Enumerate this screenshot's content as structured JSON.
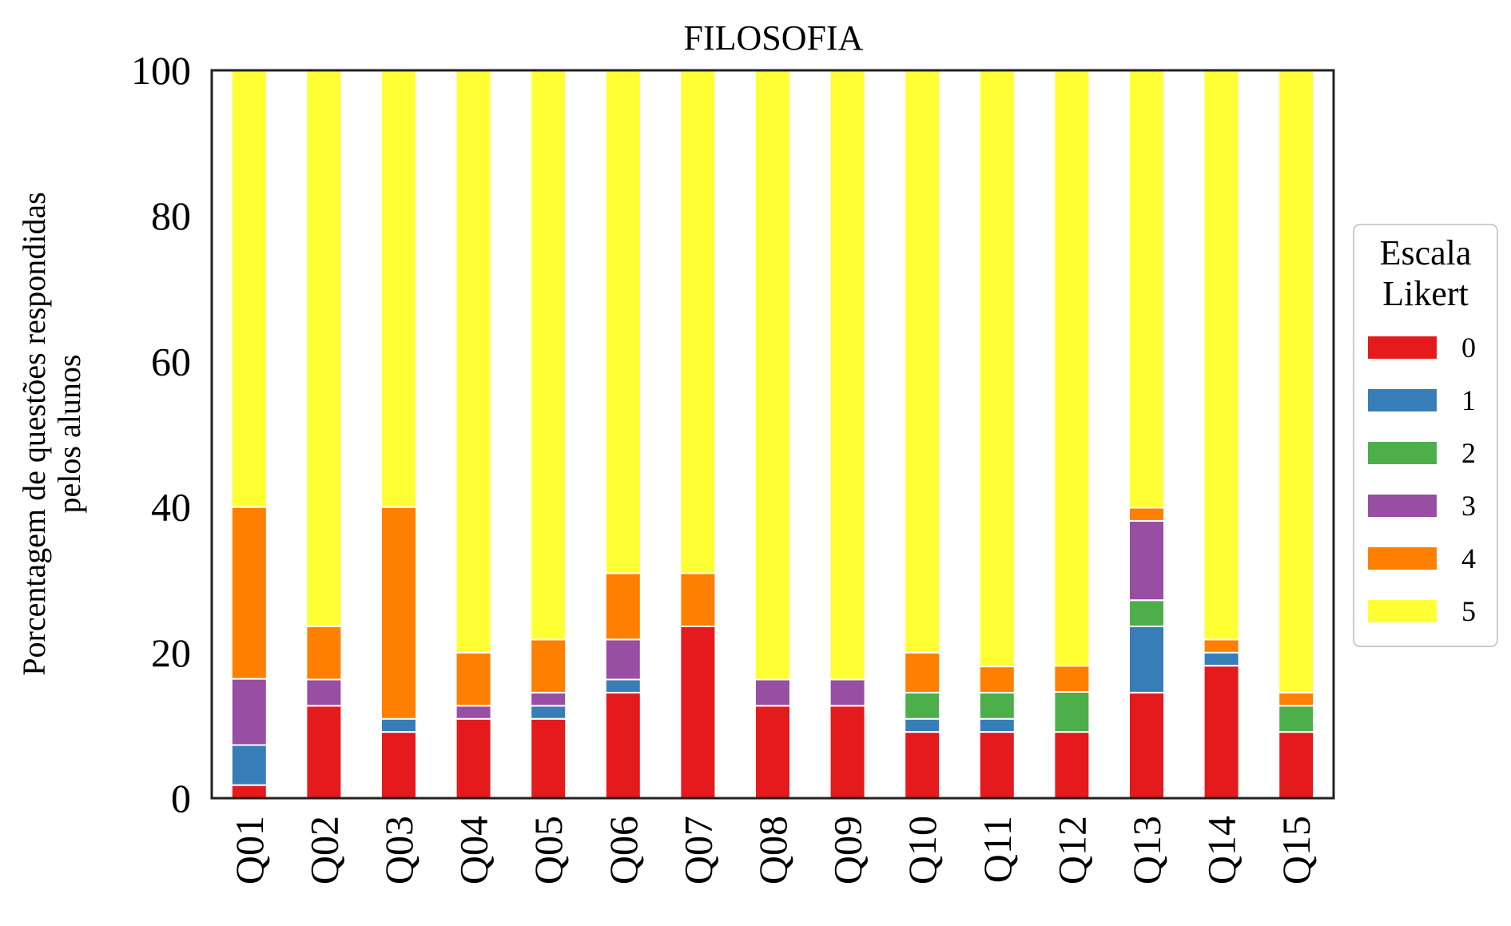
{
  "chart_data": {
    "type": "bar",
    "stacked": true,
    "title": "FILOSOFIA",
    "xlabel": "",
    "ylabel_lines": [
      "Porcentagem de questões respondidas",
      "pelos alunos"
    ],
    "ylim": [
      0,
      100
    ],
    "yticks": [
      0,
      20,
      40,
      60,
      80,
      100
    ],
    "grid": false,
    "legend_placement": "right",
    "legend_title_lines": [
      "Escala",
      "Likert"
    ],
    "categories": [
      "Q01",
      "Q02",
      "Q03",
      "Q04",
      "Q05",
      "Q06",
      "Q07",
      "Q08",
      "Q09",
      "Q10",
      "Q11",
      "Q12",
      "Q13",
      "Q14",
      "Q15"
    ],
    "series": [
      {
        "name": "0",
        "color": "#e41a1c",
        "values": [
          1.8,
          12.7,
          9.1,
          10.9,
          10.9,
          14.5,
          23.6,
          12.7,
          12.7,
          9.1,
          9.1,
          9.1,
          14.5,
          18.2,
          9.1
        ]
      },
      {
        "name": "1",
        "color": "#377eb8",
        "values": [
          5.5,
          0,
          1.8,
          0,
          1.8,
          1.8,
          0,
          0,
          0,
          1.8,
          1.8,
          0,
          9.1,
          1.8,
          0
        ]
      },
      {
        "name": "2",
        "color": "#4daf4a",
        "values": [
          0,
          0,
          0,
          0,
          0,
          0,
          0,
          0,
          0,
          3.6,
          3.6,
          5.5,
          3.6,
          0,
          3.6
        ]
      },
      {
        "name": "3",
        "color": "#984ea3",
        "values": [
          9.1,
          3.6,
          0,
          1.8,
          1.8,
          5.5,
          0,
          3.6,
          3.6,
          0,
          0,
          0,
          10.9,
          0,
          0
        ]
      },
      {
        "name": "4",
        "color": "#ff7f00",
        "values": [
          23.6,
          7.3,
          29.1,
          7.3,
          7.3,
          9.1,
          7.3,
          0,
          0,
          5.5,
          3.6,
          3.6,
          1.8,
          1.8,
          1.8
        ]
      },
      {
        "name": "5",
        "color": "#ffff33",
        "values": [
          60.0,
          76.4,
          60.0,
          80.0,
          78.2,
          69.1,
          69.1,
          83.7,
          83.7,
          80.0,
          81.9,
          81.8,
          60.1,
          78.2,
          85.5
        ]
      }
    ]
  }
}
